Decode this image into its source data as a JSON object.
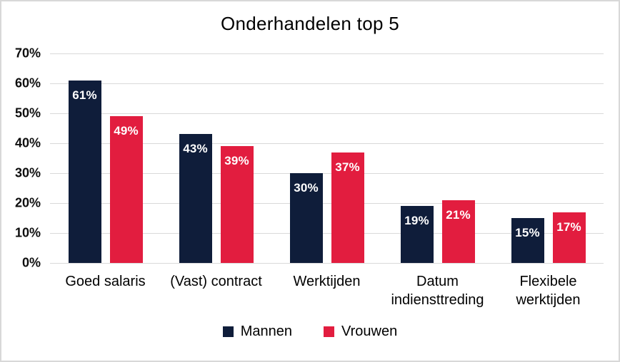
{
  "frame": {
    "background": "#ffffff",
    "border_color": "#d8d8d8"
  },
  "chart_data": {
    "type": "bar",
    "title": "Onderhandelen top 5",
    "xlabel": "",
    "ylabel": "",
    "categories": [
      "Goed salaris",
      "(Vast) contract",
      "Werktijden",
      "Datum indiensttreding",
      "Flexibele werktijden"
    ],
    "series": [
      {
        "name": "Mannen",
        "color": "#0f1d3a",
        "values": [
          61,
          43,
          30,
          19,
          15
        ],
        "labels": [
          "61%",
          "43%",
          "30%",
          "19%",
          "15%"
        ]
      },
      {
        "name": "Vrouwen",
        "color": "#e21d3f",
        "values": [
          49,
          39,
          37,
          21,
          17
        ],
        "labels": [
          "49%",
          "39%",
          "37%",
          "21%",
          "17%"
        ]
      }
    ],
    "ylim": [
      0,
      70
    ],
    "ytick_step": 10,
    "ytick_labels": [
      "0%",
      "10%",
      "20%",
      "30%",
      "40%",
      "50%",
      "60%",
      "70%"
    ],
    "grid": true,
    "gridline_color": "#d9d9d9",
    "data_labels": "inside-top",
    "data_label_color": "#ffffff",
    "legend_position": "bottom"
  }
}
